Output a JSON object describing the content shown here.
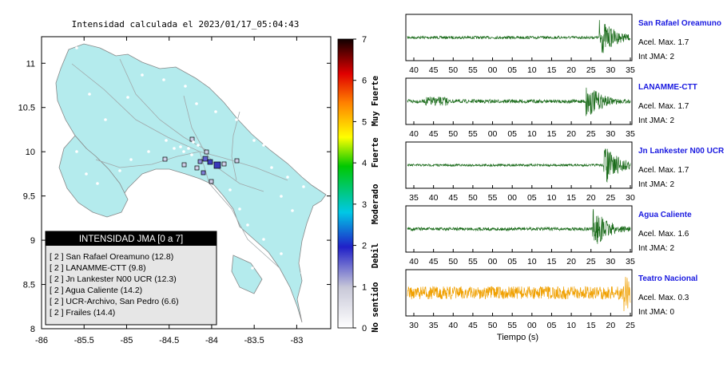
{
  "map": {
    "title": "Intensidad calculada el 2023/01/17_05:04:43",
    "xticks": [
      "-86",
      "-85.5",
      "-85",
      "-84.5",
      "-84",
      "-83.5",
      "-83"
    ],
    "xvalues": [
      -86,
      -85.5,
      -85,
      -84.5,
      -84,
      -83.5,
      -83
    ],
    "yticks": [
      "11",
      "10.5",
      "10",
      "9.5",
      "9",
      "8.5",
      "8"
    ],
    "yvalues": [
      11,
      10.5,
      10,
      9.5,
      9,
      8.5,
      8
    ],
    "xlim": [
      -86,
      -82.6
    ],
    "ylim": [
      8,
      11.3
    ],
    "land_color": "#b4ebed",
    "legend": {
      "title": "INTENSIDAD JMA [0 a 7]",
      "items": [
        "[ 2 ]  San Rafael Oreamuno (12.8)",
        "[ 2 ]  LANAMME-CTT (9.8)",
        "[ 2 ]  Jn Lankester N00 UCR (12.3)",
        "[ 2 ]  Agua Caliente (14.2)",
        "[ 2 ]  UCR-Archivo, San Pedro (6.6)",
        "[ 2 ]  Frailes (14.4)"
      ]
    }
  },
  "colorbar": {
    "ticks": [
      "0",
      "1",
      "2",
      "3",
      "4",
      "5",
      "6",
      "7"
    ],
    "labels": [
      "No sentido",
      "Debil",
      "Moderado",
      "Fuerte",
      "Muy Fuerte"
    ]
  },
  "stations": [
    {
      "name": "San Rafael Oreamuno",
      "acel": "Acel. Max. 1.7",
      "int": "Int JMA: 2",
      "ticks": [
        "40",
        "45",
        "50",
        "55",
        "00",
        "05",
        "10",
        "15",
        "20",
        "25",
        "30",
        "35"
      ],
      "color": "#1a6b1a",
      "event": 0.86,
      "noise": 0.06,
      "amp": 0.9,
      "early": 0
    },
    {
      "name": "LANAMME-CTT",
      "acel": "Acel. Max. 1.7",
      "int": "Int JMA: 2",
      "ticks": [
        "40",
        "45",
        "50",
        "55",
        "00",
        "05",
        "10",
        "15",
        "20",
        "25",
        "30",
        "35"
      ],
      "color": "#1a6b1a",
      "event": 0.8,
      "noise": 0.08,
      "amp": 0.85,
      "early": 0.1
    },
    {
      "name": "Jn Lankester N00 UCR",
      "acel": "Acel. Max. 1.7",
      "int": "Int JMA: 2",
      "ticks": [
        "35",
        "40",
        "45",
        "50",
        "55",
        "00",
        "05",
        "10",
        "15",
        "20",
        "25",
        "30"
      ],
      "color": "#1a6b1a",
      "event": 0.88,
      "noise": 0.05,
      "amp": 0.95,
      "early": 0.02
    },
    {
      "name": "Agua Caliente",
      "acel": "Acel. Max. 1.6",
      "int": "Int JMA: 2",
      "ticks": [
        "40",
        "45",
        "50",
        "55",
        "00",
        "05",
        "10",
        "15",
        "20",
        "25",
        "30",
        "35"
      ],
      "color": "#1a6b1a",
      "event": 0.83,
      "noise": 0.07,
      "amp": 0.95,
      "early": 0
    },
    {
      "name": "Teatro Nacional",
      "acel": "Acel. Max. 0.3",
      "int": "Int JMA: 0",
      "ticks": [
        "30",
        "35",
        "40",
        "45",
        "50",
        "55",
        "00",
        "05",
        "10",
        "15",
        "20",
        "25"
      ],
      "color": "#f0a000",
      "event": 0.97,
      "noise": 0.28,
      "amp": 0.9,
      "early": 0.02
    }
  ],
  "xlabel": "Tiempo (s)"
}
